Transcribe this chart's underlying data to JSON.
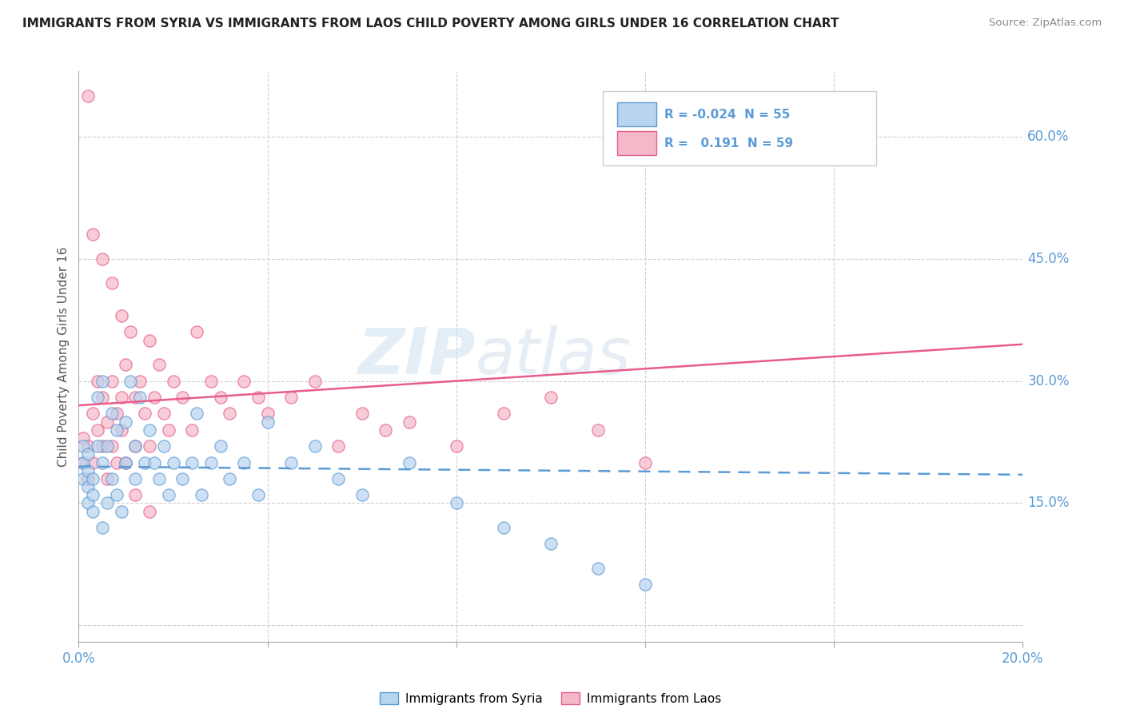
{
  "title": "IMMIGRANTS FROM SYRIA VS IMMIGRANTS FROM LAOS CHILD POVERTY AMONG GIRLS UNDER 16 CORRELATION CHART",
  "source": "Source: ZipAtlas.com",
  "xmin": 0.0,
  "xmax": 0.2,
  "ymin": -0.02,
  "ymax": 0.68,
  "yticks": [
    0.0,
    0.15,
    0.3,
    0.45,
    0.6
  ],
  "xticks": [
    0.0,
    0.04,
    0.08,
    0.12,
    0.16,
    0.2
  ],
  "watermark_zip": "ZIP",
  "watermark_atlas": "atlas",
  "legend_syria_label": "Immigrants from Syria",
  "legend_laos_label": "Immigrants from Laos",
  "syria_R": "-0.024",
  "syria_N": "55",
  "laos_R": "0.191",
  "laos_N": "59",
  "syria_fill": "#b8d4ee",
  "laos_fill": "#f5b8c8",
  "syria_edge": "#5b9bd5",
  "laos_edge": "#e85d8a",
  "syria_line_color": "#5b9bd5",
  "laos_line_color": "#e85d8a",
  "title_color": "#222222",
  "axis_label_color": "#5b9bd5",
  "grid_color": "#d0d0d0",
  "syria_scatter_x": [
    0.001,
    0.001,
    0.001,
    0.002,
    0.002,
    0.002,
    0.002,
    0.003,
    0.003,
    0.003,
    0.004,
    0.004,
    0.005,
    0.005,
    0.005,
    0.006,
    0.006,
    0.007,
    0.007,
    0.008,
    0.008,
    0.009,
    0.01,
    0.01,
    0.011,
    0.012,
    0.012,
    0.013,
    0.014,
    0.015,
    0.016,
    0.017,
    0.018,
    0.019,
    0.02,
    0.022,
    0.024,
    0.025,
    0.026,
    0.028,
    0.03,
    0.032,
    0.035,
    0.038,
    0.04,
    0.045,
    0.05,
    0.055,
    0.06,
    0.07,
    0.08,
    0.09,
    0.1,
    0.11,
    0.12
  ],
  "syria_scatter_y": [
    0.18,
    0.2,
    0.22,
    0.15,
    0.17,
    0.19,
    0.21,
    0.14,
    0.16,
    0.18,
    0.22,
    0.28,
    0.12,
    0.2,
    0.3,
    0.15,
    0.22,
    0.18,
    0.26,
    0.16,
    0.24,
    0.14,
    0.2,
    0.25,
    0.3,
    0.18,
    0.22,
    0.28,
    0.2,
    0.24,
    0.2,
    0.18,
    0.22,
    0.16,
    0.2,
    0.18,
    0.2,
    0.26,
    0.16,
    0.2,
    0.22,
    0.18,
    0.2,
    0.16,
    0.25,
    0.2,
    0.22,
    0.18,
    0.16,
    0.2,
    0.15,
    0.12,
    0.1,
    0.07,
    0.05
  ],
  "laos_scatter_x": [
    0.001,
    0.001,
    0.002,
    0.002,
    0.003,
    0.003,
    0.004,
    0.004,
    0.005,
    0.005,
    0.006,
    0.006,
    0.007,
    0.007,
    0.008,
    0.008,
    0.009,
    0.009,
    0.01,
    0.01,
    0.011,
    0.012,
    0.012,
    0.013,
    0.014,
    0.015,
    0.015,
    0.016,
    0.017,
    0.018,
    0.019,
    0.02,
    0.022,
    0.024,
    0.025,
    0.028,
    0.03,
    0.032,
    0.035,
    0.038,
    0.04,
    0.045,
    0.05,
    0.055,
    0.06,
    0.065,
    0.07,
    0.08,
    0.09,
    0.1,
    0.11,
    0.12,
    0.002,
    0.003,
    0.005,
    0.007,
    0.009,
    0.012,
    0.015
  ],
  "laos_scatter_y": [
    0.2,
    0.23,
    0.18,
    0.22,
    0.26,
    0.2,
    0.24,
    0.3,
    0.22,
    0.28,
    0.18,
    0.25,
    0.3,
    0.22,
    0.26,
    0.2,
    0.28,
    0.24,
    0.2,
    0.32,
    0.36,
    0.28,
    0.22,
    0.3,
    0.26,
    0.22,
    0.35,
    0.28,
    0.32,
    0.26,
    0.24,
    0.3,
    0.28,
    0.24,
    0.36,
    0.3,
    0.28,
    0.26,
    0.3,
    0.28,
    0.26,
    0.28,
    0.3,
    0.22,
    0.26,
    0.24,
    0.25,
    0.22,
    0.26,
    0.28,
    0.24,
    0.2,
    0.65,
    0.48,
    0.45,
    0.42,
    0.38,
    0.16,
    0.14
  ],
  "syria_line_x0": 0.0,
  "syria_line_x1": 0.2,
  "syria_line_y0": 0.195,
  "syria_line_y1": 0.185,
  "laos_line_x0": 0.0,
  "laos_line_x1": 0.2,
  "laos_line_y0": 0.27,
  "laos_line_y1": 0.345
}
